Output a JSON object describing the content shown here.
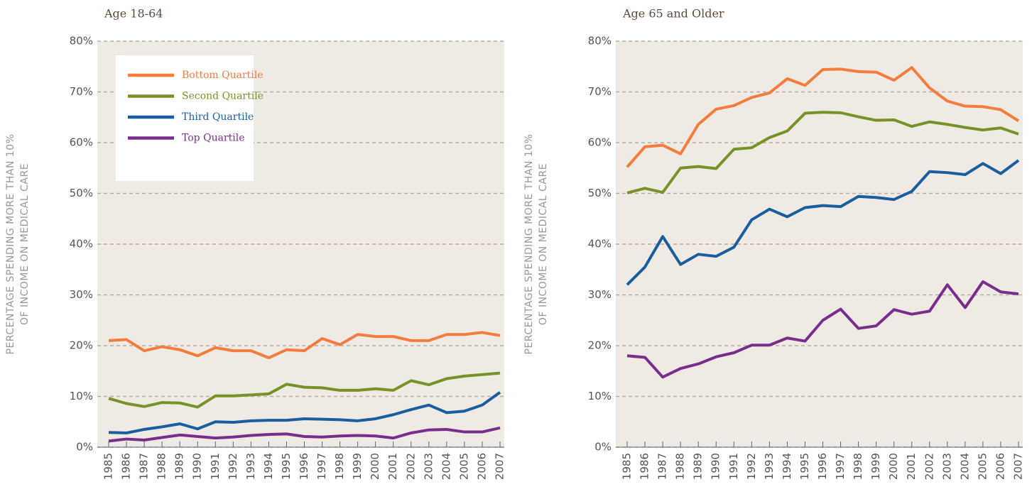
{
  "chart_data": [
    {
      "type": "line",
      "title": "Age 18-64",
      "y_label": [
        "PERCENTAGE SPENDING MORE THAN 10%",
        "OF INCOME ON MEDICAL CARE"
      ],
      "categories": [
        "1985",
        "1986",
        "1987",
        "1988",
        "1989",
        "1990",
        "1991",
        "1992",
        "1993",
        "1994",
        "1995",
        "1996",
        "1997",
        "1998",
        "1999",
        "2000",
        "2001",
        "2002",
        "2003",
        "2004",
        "2005",
        "2006",
        "2007"
      ],
      "ylim": [
        0,
        80
      ],
      "yticks": [
        {
          "value": 0,
          "label": "0%"
        },
        {
          "value": 10,
          "label": "10%"
        },
        {
          "value": 20,
          "label": "20%"
        },
        {
          "value": 30,
          "label": "30%"
        },
        {
          "value": 40,
          "label": "40%"
        },
        {
          "value": 50,
          "label": "50%"
        },
        {
          "value": 60,
          "label": "60%"
        },
        {
          "value": 70,
          "label": "70%"
        },
        {
          "value": 80,
          "label": "80%"
        }
      ],
      "grid": true,
      "legend": "upper left",
      "series": [
        {
          "name": "Bottom Quartile",
          "color": "#f47c3c",
          "values": [
            21,
            21.2,
            19,
            19.8,
            19.2,
            18,
            19.6,
            19,
            19,
            17.6,
            19.2,
            19,
            21.4,
            20.2,
            22.2,
            21.8,
            21.8,
            21,
            21,
            22.2,
            22.2,
            22.6,
            22
          ]
        },
        {
          "name": "Second Quartile",
          "color": "#78922a",
          "values": [
            9.6,
            8.6,
            8,
            8.8,
            8.7,
            7.9,
            10.1,
            10.1,
            10.3,
            10.5,
            12.4,
            11.8,
            11.7,
            11.2,
            11.2,
            11.5,
            11.2,
            13.1,
            12.3,
            13.5,
            14,
            14.3,
            14.6
          ]
        },
        {
          "name": "Third Quartile",
          "color": "#1a5ea0",
          "values": [
            2.9,
            2.8,
            3.5,
            4,
            4.6,
            3.6,
            5,
            4.9,
            5.2,
            5.3,
            5.3,
            5.6,
            5.5,
            5.4,
            5.2,
            5.6,
            6.4,
            7.4,
            8.3,
            6.8,
            7.1,
            8.3,
            10.8
          ]
        },
        {
          "name": "Top Quartile",
          "color": "#7a2e8c",
          "values": [
            1.2,
            1.6,
            1.4,
            1.9,
            2.4,
            2.1,
            1.8,
            2,
            2.3,
            2.5,
            2.6,
            2.1,
            2,
            2.2,
            2.3,
            2.2,
            1.8,
            2.8,
            3.4,
            3.5,
            3,
            3,
            3.8
          ]
        }
      ]
    },
    {
      "type": "line",
      "title": "Age 65 and Older",
      "y_label": [
        "PERCENTAGE SPENDING MORE THAN 10%",
        "OF INCOME ON MEDICAL CARE"
      ],
      "categories": [
        "1985",
        "1986",
        "1987",
        "1988",
        "1989",
        "1990",
        "1991",
        "1992",
        "1993",
        "1994",
        "1995",
        "1996",
        "1997",
        "1998",
        "1999",
        "2000",
        "2001",
        "2002",
        "2003",
        "2004",
        "2005",
        "2006",
        "2007"
      ],
      "ylim": [
        0,
        80
      ],
      "yticks": [
        {
          "value": 0,
          "label": "0%"
        },
        {
          "value": 10,
          "label": "10%"
        },
        {
          "value": 20,
          "label": "20%"
        },
        {
          "value": 30,
          "label": "30%"
        },
        {
          "value": 40,
          "label": "40%"
        },
        {
          "value": 50,
          "label": "50%"
        },
        {
          "value": 60,
          "label": "60%"
        },
        {
          "value": 70,
          "label": "70%"
        },
        {
          "value": 80,
          "label": "80%"
        }
      ],
      "grid": true,
      "series": [
        {
          "color": "#f47c3c",
          "values": [
            55.2,
            59.2,
            59.5,
            57.8,
            63.6,
            66.6,
            67.3,
            68.9,
            69.8,
            72.6,
            71.3,
            74.4,
            74.5,
            74,
            73.9,
            72.3,
            74.8,
            70.8,
            68.2,
            67.2,
            67.1,
            66.5,
            64.3
          ]
        },
        {
          "color": "#78922a",
          "values": [
            50.1,
            51,
            50.2,
            55,
            55.3,
            54.9,
            58.7,
            59,
            61,
            62.3,
            65.8,
            66,
            65.9,
            65.1,
            64.4,
            64.5,
            63.2,
            64.1,
            63.6,
            63,
            62.5,
            62.9,
            61.7
          ]
        },
        {
          "color": "#1a5ea0",
          "values": [
            32,
            35.5,
            41.5,
            36,
            38,
            37.6,
            39.4,
            44.8,
            46.9,
            45.4,
            47.2,
            47.6,
            47.4,
            49.4,
            49.2,
            48.8,
            50.4,
            54.3,
            54.1,
            53.7,
            55.9,
            53.9,
            56.5
          ]
        },
        {
          "color": "#7a2e8c",
          "values": [
            18,
            17.7,
            13.8,
            15.5,
            16.4,
            17.8,
            18.6,
            20.1,
            20.1,
            21.5,
            20.9,
            25,
            27.2,
            23.4,
            23.9,
            27.1,
            26.2,
            26.8,
            32,
            27.5,
            32.6,
            30.6,
            30.2
          ]
        }
      ]
    }
  ]
}
